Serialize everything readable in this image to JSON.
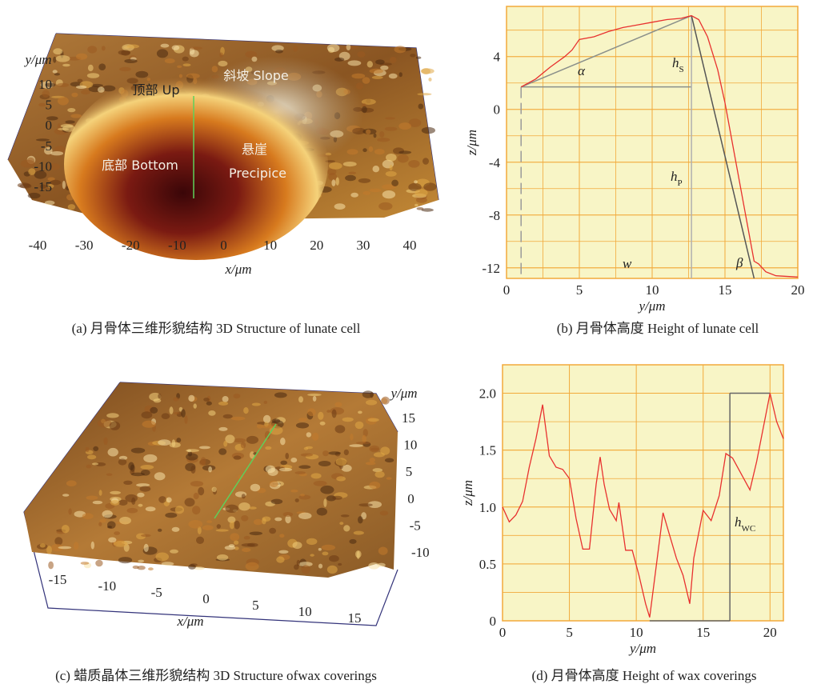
{
  "chart_data": [
    {
      "type": "surface3d",
      "caption": "(a) 月骨体三维形貌结构 3D Structure of lunate cell",
      "xlabel": "x/μm",
      "ylabel": "y/μm",
      "xlim": [
        -40,
        40
      ],
      "xticks": [
        -40,
        -30,
        -20,
        -10,
        0,
        10,
        20,
        30,
        40
      ],
      "ylim": [
        -15,
        10
      ],
      "yticks": [
        10,
        5,
        0,
        -5,
        -10,
        -15
      ],
      "annotations": [
        "顶部 Up",
        "斜坡 Slope",
        "底部 Bottom",
        "悬崖",
        "Precipice"
      ]
    },
    {
      "type": "line",
      "caption": "(b) 月骨体高度 Height of lunate cell",
      "xlabel": "y/μm",
      "ylabel": "z/μm",
      "xlim": [
        0,
        20
      ],
      "xticks": [
        0,
        5,
        10,
        15,
        20
      ],
      "ylim": [
        -12.8,
        7.8
      ],
      "yticks": [
        -12,
        -8,
        -4,
        0,
        4
      ],
      "grid": true,
      "color": "#e8312f",
      "x": [
        1,
        2,
        3,
        4,
        4.5,
        5,
        6,
        7,
        8,
        9,
        10,
        11,
        12,
        12.7,
        13.2,
        13.8,
        14.5,
        15,
        15.5,
        16,
        16.5,
        17,
        17.3,
        17.8,
        18.5,
        20
      ],
      "values": [
        1.7,
        2.3,
        3.2,
        4.0,
        4.5,
        5.3,
        5.5,
        5.9,
        6.2,
        6.4,
        6.6,
        6.8,
        6.9,
        7.1,
        6.8,
        5.5,
        3.0,
        0.5,
        -2.5,
        -5.5,
        -8.5,
        -11.5,
        -11.7,
        -12.3,
        -12.6,
        -12.7
      ],
      "guides": [
        {
          "x": [
            1,
            12.7
          ],
          "y": [
            1.7,
            7.1
          ],
          "color": "#8a8f8a",
          "dashed": false
        },
        {
          "x": [
            1,
            12.7
          ],
          "y": [
            1.7,
            1.7
          ],
          "color": "#8a8f8a",
          "dashed": false
        },
        {
          "x": [
            12.7,
            12.7
          ],
          "y": [
            7.1,
            -12.8
          ],
          "color": "#b0b0b0",
          "dashed": false
        },
        {
          "x": [
            1,
            1
          ],
          "y": [
            1.7,
            -12.8
          ],
          "color": "#9a9a9a",
          "dashed": true
        },
        {
          "x": [
            12.7,
            17
          ],
          "y": [
            7.1,
            -12.8
          ],
          "color": "#555555",
          "dashed": false
        }
      ],
      "annotations": [
        {
          "text": "α"
        },
        {
          "text": "h",
          "sub": "S"
        },
        {
          "text": "h",
          "sub": "P"
        },
        {
          "text": "w"
        },
        {
          "text": "β"
        }
      ]
    },
    {
      "type": "surface3d",
      "caption": "(c) 蜡质晶体三维形貌结构 3D Structure ofwax coverings",
      "xlabel": "x/μm",
      "ylabel": "y/μm",
      "xlim": [
        -15,
        15
      ],
      "xticks": [
        -15,
        -10,
        -5,
        0,
        5,
        10,
        15
      ],
      "ylim": [
        -10,
        15
      ],
      "yticks": [
        15,
        10,
        5,
        0,
        -5,
        -10
      ],
      "annotations": []
    },
    {
      "type": "line",
      "caption": "(d) 月骨体高度 Height of wax coverings",
      "xlabel": "y/μm",
      "ylabel": "z/μm",
      "xlim": [
        0,
        21
      ],
      "xticks": [
        0,
        5,
        10,
        15,
        20
      ],
      "ylim": [
        0,
        2.25
      ],
      "yticks": [
        0,
        0.5,
        {
          "value": 1,
          "label": "1.0"
        },
        1.5,
        {
          "value": 2,
          "label": "2.0"
        }
      ],
      "grid": true,
      "color": "#e8312f",
      "x": [
        0,
        0.5,
        1,
        1.5,
        2,
        2.5,
        3,
        3.5,
        4,
        4.5,
        5,
        5.5,
        6,
        6.5,
        7,
        7.3,
        7.6,
        8,
        8.5,
        8.7,
        9.2,
        9.7,
        10.2,
        10.7,
        11,
        11.6,
        12,
        12.5,
        13,
        13.5,
        14,
        14.3,
        15,
        15.6,
        16.2,
        16.7,
        17.2,
        18.5,
        19,
        20,
        20.5,
        21
      ],
      "values": [
        1.0,
        0.87,
        0.93,
        1.05,
        1.35,
        1.6,
        1.9,
        1.45,
        1.35,
        1.33,
        1.25,
        0.9,
        0.63,
        0.63,
        1.2,
        1.44,
        1.2,
        0.98,
        0.88,
        1.04,
        0.62,
        0.62,
        0.4,
        0.15,
        0.03,
        0.58,
        0.95,
        0.75,
        0.55,
        0.4,
        0.15,
        0.55,
        0.97,
        0.88,
        1.1,
        1.47,
        1.43,
        1.15,
        1.4,
        2.0,
        1.75,
        1.6
      ],
      "guides": [
        {
          "x": [
            11,
            17
          ],
          "y": [
            0,
            0
          ],
          "color": "#666666",
          "dashed": false
        },
        {
          "x": [
            17,
            17
          ],
          "y": [
            0,
            2
          ],
          "color": "#666666",
          "dashed": false
        },
        {
          "x": [
            17,
            20
          ],
          "y": [
            2,
            2
          ],
          "color": "#666666",
          "dashed": false
        }
      ],
      "annotations": [
        {
          "text": "h",
          "sub": "WC"
        }
      ]
    }
  ]
}
